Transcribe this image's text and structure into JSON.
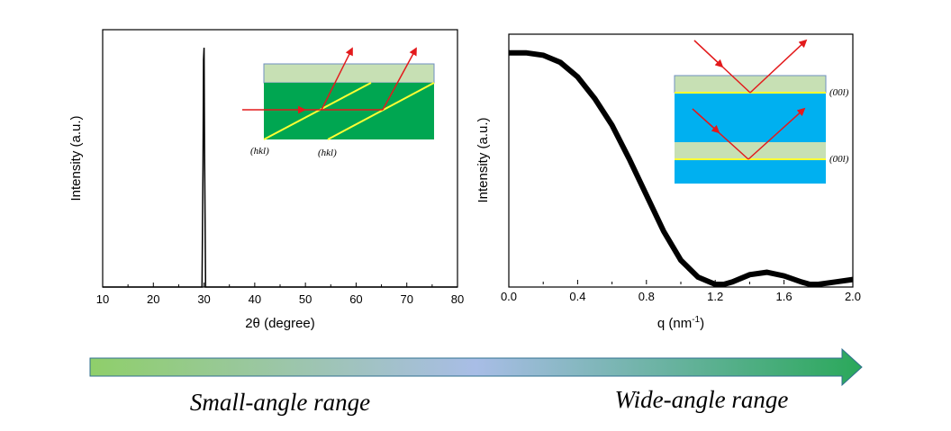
{
  "chart_data": [
    {
      "type": "line",
      "xlabel": "2θ (degree)",
      "ylabel": "Intensity (a.u.)",
      "xlim": [
        10,
        80
      ],
      "xticks": [
        "10",
        "20",
        "30",
        "40",
        "50",
        "60",
        "70",
        "80"
      ],
      "series": [
        {
          "x": [
            10,
            29.6,
            29.8,
            29.9,
            30.0,
            30.1,
            30.3,
            80
          ],
          "y": [
            0,
            0,
            0.5,
            0.95,
            1.0,
            0.6,
            0,
            0
          ]
        }
      ],
      "inset": {
        "labels": [
          "(hkl)",
          "(hkl)"
        ]
      }
    },
    {
      "type": "line",
      "xlabel": "q (nm-1)",
      "xlabel_main": "q (nm",
      "xlabel_sup": "-1",
      "xlabel_end": ")",
      "ylabel": "Intensity (a.u.)",
      "xlim": [
        0,
        2.0
      ],
      "xticks": [
        "0.0",
        "0.4",
        "0.8",
        "1.2",
        "1.6",
        "2.0"
      ],
      "series": [
        {
          "x": [
            0.0,
            0.1,
            0.2,
            0.3,
            0.4,
            0.5,
            0.6,
            0.7,
            0.8,
            0.9,
            1.0,
            1.1,
            1.2,
            1.25,
            1.3,
            1.4,
            1.5,
            1.6,
            1.7,
            1.75,
            1.8,
            1.9,
            2.0
          ],
          "y": [
            0.96,
            0.96,
            0.95,
            0.92,
            0.86,
            0.77,
            0.66,
            0.52,
            0.37,
            0.22,
            0.1,
            0.03,
            0.0,
            0.0,
            0.01,
            0.04,
            0.05,
            0.035,
            0.01,
            0.0,
            0.0,
            0.01,
            0.02
          ]
        }
      ],
      "inset": {
        "labels": [
          "(00l)",
          "(00l)"
        ]
      }
    }
  ],
  "bottom": {
    "left_label": "Small-angle range",
    "right_label": "Wide-angle range",
    "gradient_colors": [
      "#8fcf6a",
      "#a8bde6",
      "#2aa85a"
    ]
  }
}
